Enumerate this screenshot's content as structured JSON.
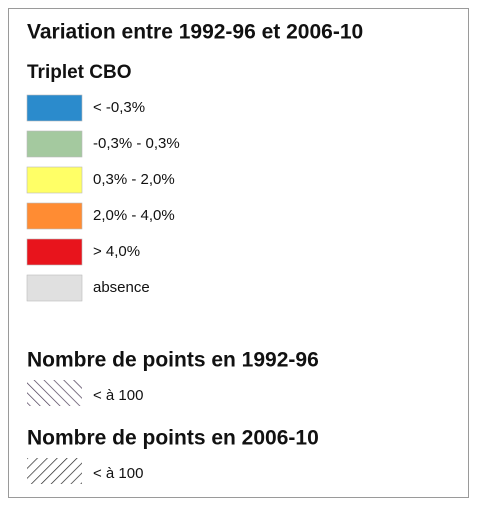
{
  "title": "Variation entre 1992-96 et 2006-10",
  "classes_title": "Triplet CBO",
  "classes": [
    {
      "label": "< -0,3%",
      "color": "#2b8bcc"
    },
    {
      "label": "-0,3% - 0,3%",
      "color": "#a4c99f"
    },
    {
      "label": "0,3% - 2,0%",
      "color": "#ffff66"
    },
    {
      "label": "2,0% - 4,0%",
      "color": "#ff8c33"
    },
    {
      "label": "> 4,0%",
      "color": "#e8141c"
    },
    {
      "label": "absence",
      "color": "#e0e0e0"
    }
  ],
  "hatch_sections": [
    {
      "title": "Nombre de points en 1992-96",
      "label": "< à 100"
    },
    {
      "title": "Nombre de points en 2006-10",
      "label": "< à 100"
    }
  ]
}
